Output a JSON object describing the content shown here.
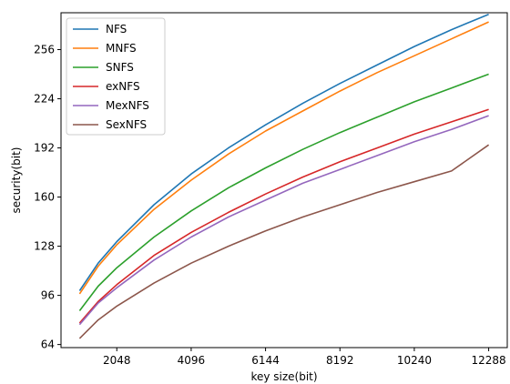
{
  "chart_data": {
    "type": "line",
    "xlabel": "key size(bit)",
    "ylabel": "security(bit)",
    "xlim": [
      512,
      12800
    ],
    "ylim": [
      62,
      280
    ],
    "x_ticks": [
      2048,
      4096,
      6144,
      8192,
      10240,
      12288
    ],
    "y_ticks": [
      64,
      96,
      128,
      160,
      192,
      224,
      256
    ],
    "x_tick_labels": [
      "2048",
      "4096",
      "6144",
      "8192",
      "10240",
      "12288"
    ],
    "y_tick_labels": [
      "64",
      "96",
      "128",
      "160",
      "192",
      "224",
      "256"
    ],
    "grid": false,
    "legend_position": "top-left",
    "x": [
      1024,
      1536,
      2048,
      3072,
      4096,
      5120,
      6144,
      7168,
      8192,
      9216,
      10240,
      11264,
      12288
    ],
    "series": [
      {
        "name": "NFS",
        "color": "#1f77b4",
        "values": [
          99,
          117,
          131,
          155,
          175,
          192,
          207,
          221,
          234,
          246,
          258,
          269,
          279
        ]
      },
      {
        "name": "MNFS",
        "color": "#ff7f0e",
        "values": [
          97,
          115,
          129,
          152,
          171,
          188,
          203,
          216,
          229,
          241,
          252,
          263,
          274
        ]
      },
      {
        "name": "SNFS",
        "color": "#2ca02c",
        "values": [
          86,
          102,
          114,
          134,
          151,
          166,
          179,
          191,
          202,
          212,
          222,
          231,
          240
        ]
      },
      {
        "name": "exNFS",
        "color": "#d62728",
        "values": [
          78,
          92,
          103,
          122,
          137,
          150,
          162,
          173,
          183,
          192,
          201,
          209,
          217
        ]
      },
      {
        "name": "MexNFS",
        "color": "#9467bd",
        "values": [
          77,
          91,
          101,
          119,
          134,
          147,
          158,
          169,
          178,
          187,
          196,
          204,
          213
        ]
      },
      {
        "name": "SexNFS",
        "color": "#8c564b",
        "values": [
          68,
          80,
          89,
          104,
          117,
          128,
          138,
          147,
          155,
          163,
          170,
          177,
          194
        ]
      }
    ]
  }
}
